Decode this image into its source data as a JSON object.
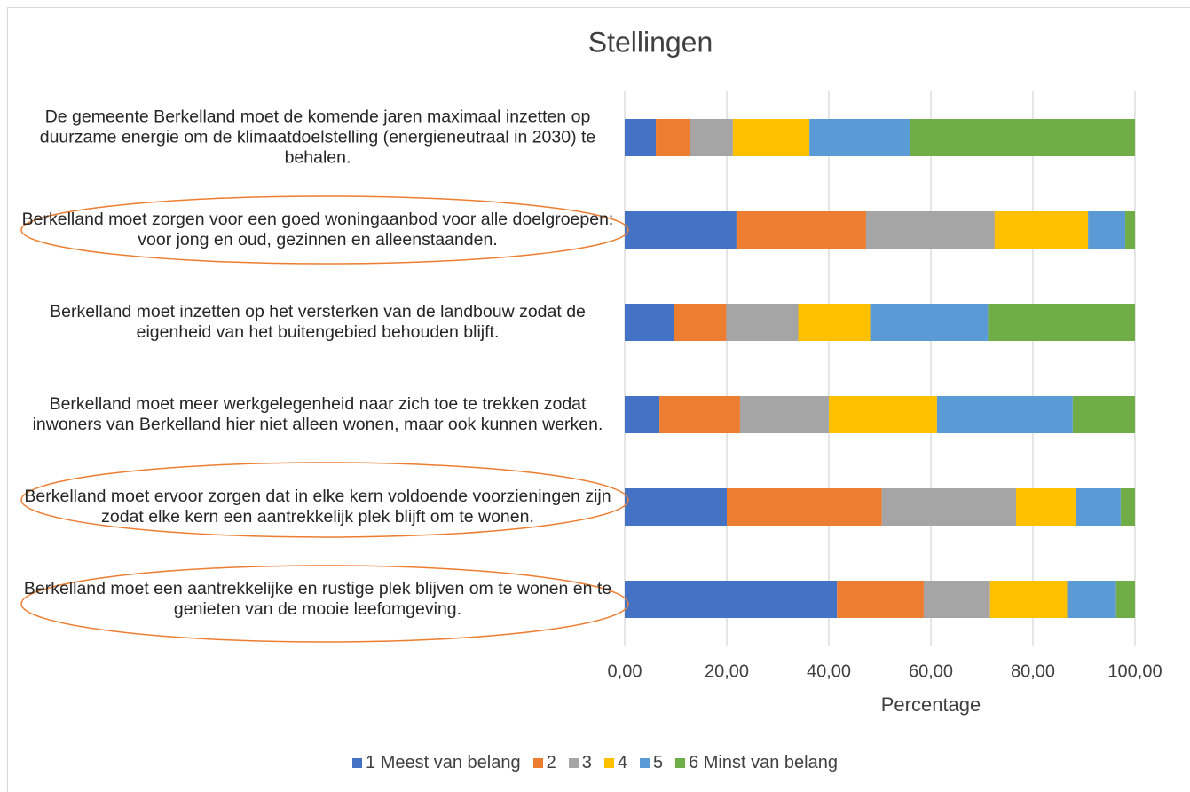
{
  "chart_data": {
    "type": "stacked_barh",
    "title": "Stellingen",
    "xlabel": "Percentage",
    "categories": [
      "De gemeente Berkelland moet de komende jaren maximaal inzetten op duurzame energie om de klimaatdoelstelling (energieneutraal in 2030) te behalen.",
      "Berkelland moet zorgen voor een goed woningaanbod voor alle doelgroepen: voor jong en oud, gezinnen en alleenstaanden.",
      "Berkelland moet inzetten op het versterken van de landbouw zodat de eigenheid van het buitengebied behouden blijft.",
      "Berkelland moet meer werkgelegenheid naar zich toe te trekken zodat inwoners van Berkelland hier niet alleen wonen, maar ook kunnen werken.",
      "Berkelland moet ervoor zorgen dat in elke kern voldoende voorzieningen zijn zodat elke kern een aantrekkelijk plek blijft om te wonen.",
      "Berkelland moet een aantrekkelijke en rustige plek blijven om te wonen en te genieten van de mooie leefomgeving."
    ],
    "series": [
      {
        "name": "1 Meest van belang",
        "color": "#4472c4",
        "values": [
          6.1,
          21.9,
          9.6,
          6.8,
          20.0,
          41.6
        ]
      },
      {
        "name": "2",
        "color": "#ed7d31",
        "values": [
          6.6,
          25.4,
          10.3,
          15.8,
          30.4,
          17.0
        ]
      },
      {
        "name": "3",
        "color": "#a5a5a5",
        "values": [
          8.5,
          25.2,
          14.1,
          17.4,
          26.3,
          13.0
        ]
      },
      {
        "name": "4",
        "color": "#ffc000",
        "values": [
          15.0,
          18.3,
          14.1,
          21.2,
          11.8,
          15.1
        ]
      },
      {
        "name": "5",
        "color": "#5b9bd5",
        "values": [
          19.8,
          7.3,
          23.1,
          26.6,
          8.7,
          9.6
        ]
      },
      {
        "name": "6 Minst van belang",
        "color": "#70ad47",
        "values": [
          44.0,
          1.9,
          28.8,
          12.2,
          2.8,
          3.7
        ]
      }
    ],
    "xlim": [
      0,
      100
    ],
    "xticks": [
      {
        "value": 0,
        "label": "0,00"
      },
      {
        "value": 20,
        "label": "20,00"
      },
      {
        "value": 40,
        "label": "40,00"
      },
      {
        "value": 60,
        "label": "60,00"
      },
      {
        "value": 80,
        "label": "80,00"
      },
      {
        "value": 100,
        "label": "100,00"
      }
    ],
    "grid": true,
    "legend": "bottom"
  }
}
